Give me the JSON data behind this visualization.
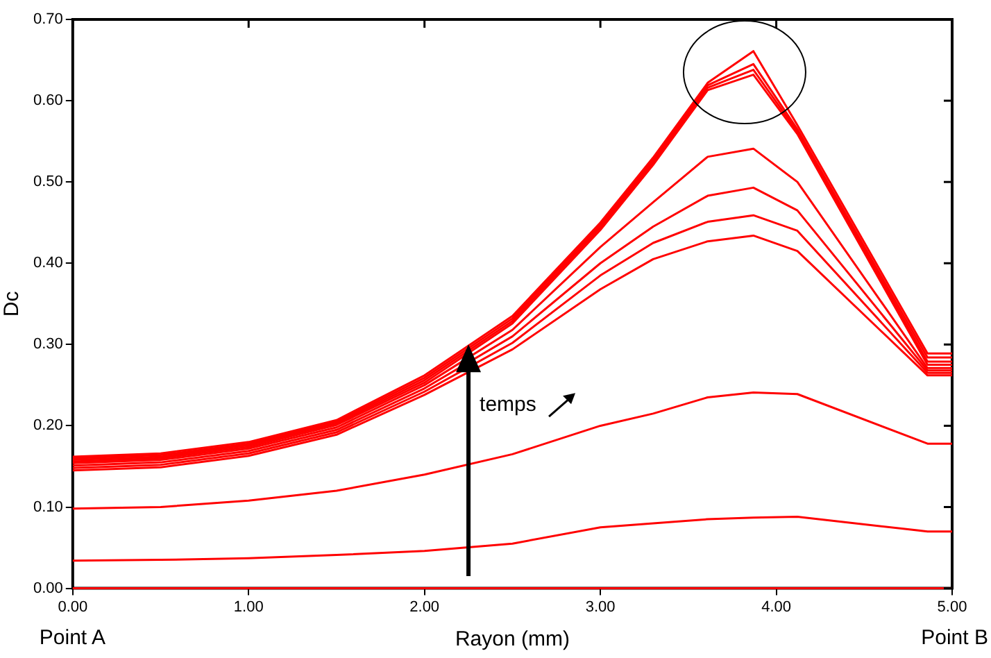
{
  "chart_data": {
    "type": "line",
    "xlabel": "Rayon (mm)",
    "ylabel": "Dc",
    "x": [
      0,
      0.5,
      1,
      1.5,
      2,
      2.5,
      3,
      3.3,
      3.61,
      3.87,
      4.12,
      4.86,
      5
    ],
    "series": [
      {
        "color": "#ff0000",
        "values": [
          0.162,
          0.166,
          0.18,
          0.207,
          0.262,
          0.335,
          0.45,
          0.53,
          0.622,
          0.661,
          0.57,
          0.289,
          0.289
        ]
      },
      {
        "color": "#ff0000",
        "values": [
          0.16,
          0.164,
          0.178,
          0.205,
          0.259,
          0.332,
          0.447,
          0.527,
          0.619,
          0.645,
          0.565,
          0.284,
          0.284
        ]
      },
      {
        "color": "#ff0000",
        "values": [
          0.158,
          0.162,
          0.176,
          0.203,
          0.256,
          0.329,
          0.444,
          0.524,
          0.616,
          0.638,
          0.562,
          0.279,
          0.279
        ]
      },
      {
        "color": "#ff0000",
        "values": [
          0.156,
          0.16,
          0.174,
          0.201,
          0.253,
          0.326,
          0.441,
          0.521,
          0.613,
          0.632,
          0.559,
          0.275,
          0.275
        ]
      },
      {
        "color": "#ff0000",
        "values": [
          0.154,
          0.158,
          0.172,
          0.198,
          0.25,
          0.318,
          0.42,
          0.475,
          0.531,
          0.541,
          0.5,
          0.271,
          0.271
        ]
      },
      {
        "color": "#ff0000",
        "values": [
          0.151,
          0.155,
          0.169,
          0.195,
          0.246,
          0.31,
          0.4,
          0.445,
          0.483,
          0.493,
          0.465,
          0.268,
          0.268
        ]
      },
      {
        "color": "#ff0000",
        "values": [
          0.148,
          0.152,
          0.166,
          0.192,
          0.242,
          0.302,
          0.385,
          0.425,
          0.451,
          0.459,
          0.44,
          0.265,
          0.265
        ]
      },
      {
        "color": "#ff0000",
        "values": [
          0.145,
          0.149,
          0.163,
          0.189,
          0.238,
          0.294,
          0.368,
          0.405,
          0.427,
          0.434,
          0.415,
          0.262,
          0.262
        ]
      },
      {
        "color": "#ff0000",
        "values": [
          0.098,
          0.1,
          0.108,
          0.12,
          0.14,
          0.165,
          0.2,
          0.215,
          0.235,
          0.241,
          0.239,
          0.178,
          0.178
        ]
      },
      {
        "color": "#ff0000",
        "values": [
          0.034,
          0.035,
          0.037,
          0.041,
          0.046,
          0.055,
          0.075,
          0.08,
          0.085,
          0.087,
          0.088,
          0.07,
          0.07
        ]
      },
      {
        "color": "#ff0000",
        "values": [
          0,
          0,
          0,
          0,
          0,
          0,
          0,
          0,
          0,
          0,
          0,
          0,
          0
        ]
      }
    ],
    "xlim": [
      0,
      5
    ],
    "xticks": [
      {
        "value": 0,
        "label": "0.00"
      },
      {
        "value": 1,
        "label": "1.00"
      },
      {
        "value": 2,
        "label": "2.00"
      },
      {
        "value": 3,
        "label": "3.00"
      },
      {
        "value": 4,
        "label": "4.00"
      },
      {
        "value": 5,
        "label": "5.00"
      }
    ],
    "ylim": [
      0,
      0.7
    ],
    "yticks": [
      {
        "value": 0,
        "label": "0.00"
      },
      {
        "value": 0.1,
        "label": "0.10"
      },
      {
        "value": 0.2,
        "label": "0.20"
      },
      {
        "value": 0.3,
        "label": "0.30"
      },
      {
        "value": 0.4,
        "label": "0.40"
      },
      {
        "value": 0.5,
        "label": "0.50"
      },
      {
        "value": 0.6,
        "label": "0.60"
      },
      {
        "value": 0.7,
        "label": "0.70"
      }
    ],
    "annotations": [
      "Point A",
      "Point B",
      "temps"
    ],
    "grid": false,
    "legend": false,
    "marker": "none",
    "line_style": "solid"
  }
}
